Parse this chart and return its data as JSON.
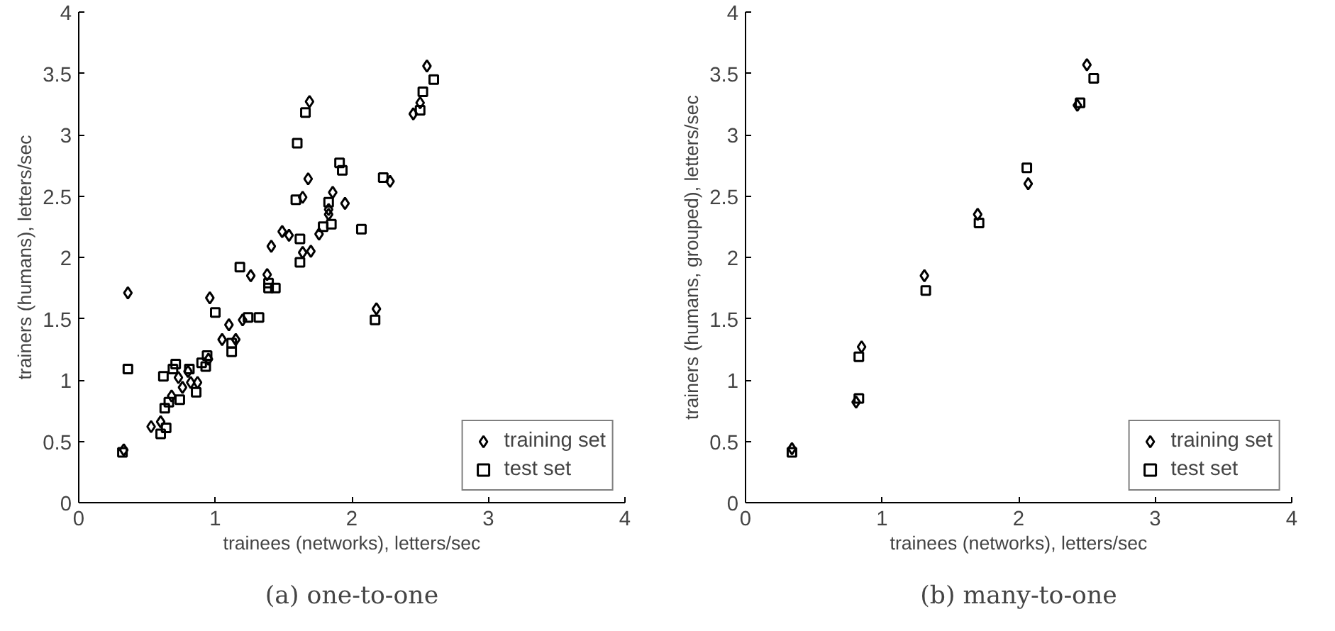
{
  "chart_data": [
    {
      "type": "scatter",
      "xlabel": "trainees (networks), letters/sec",
      "ylabel": "trainers (humans), letters/sec",
      "annotations": [
        "(a) one-to-one"
      ],
      "xlim": [
        0,
        4
      ],
      "ylim": [
        0,
        4
      ],
      "xticks": [
        0,
        1,
        2,
        3,
        4
      ],
      "yticks": [
        0,
        0.5,
        1,
        1.5,
        2,
        2.5,
        3,
        3.5,
        4
      ],
      "grid": false,
      "legend": "bottom right",
      "series": [
        {
          "name": "training set",
          "color": "#000000",
          "marker": "diamond",
          "x": [
            0.36,
            0.33,
            0.53,
            0.6,
            0.68,
            0.73,
            0.76,
            0.8,
            0.82,
            0.87,
            0.96,
            0.95,
            1.1,
            1.05,
            1.15,
            1.2,
            1.26,
            1.38,
            1.41,
            1.49,
            2.55,
            1.69,
            1.68,
            1.64,
            1.86,
            1.95,
            1.83,
            1.83,
            1.76,
            1.54,
            1.7,
            1.64,
            2.28,
            2.45,
            2.5,
            2.18
          ],
          "values": [
            1.71,
            0.43,
            0.62,
            0.66,
            0.87,
            1.02,
            0.94,
            1.07,
            0.98,
            0.98,
            1.67,
            1.17,
            1.45,
            1.33,
            1.33,
            1.49,
            1.85,
            1.86,
            2.09,
            2.21,
            3.56,
            3.27,
            2.64,
            2.49,
            2.53,
            2.44,
            2.39,
            2.35,
            2.19,
            2.18,
            2.05,
            2.04,
            2.62,
            3.17,
            3.26,
            1.58
          ]
        },
        {
          "name": "test set",
          "color": "#000000",
          "marker": "square",
          "x": [
            0.36,
            0.32,
            0.62,
            0.6,
            0.64,
            0.63,
            0.66,
            0.71,
            0.69,
            0.74,
            0.81,
            0.86,
            0.9,
            0.94,
            0.93,
            1.0,
            1.12,
            1.12,
            1.18,
            1.24,
            1.32,
            1.39,
            1.44,
            1.39,
            1.66,
            1.6,
            2.6,
            2.52,
            2.5,
            1.91,
            1.93,
            2.23,
            1.59,
            1.83,
            1.79,
            1.85,
            1.62,
            1.62,
            2.07,
            2.17
          ],
          "values": [
            1.09,
            0.41,
            1.03,
            0.56,
            0.61,
            0.77,
            0.82,
            1.13,
            1.09,
            0.84,
            1.09,
            0.9,
            1.14,
            1.2,
            1.11,
            1.55,
            1.3,
            1.23,
            1.92,
            1.51,
            1.51,
            1.79,
            1.75,
            1.75,
            3.18,
            2.93,
            3.45,
            3.35,
            3.2,
            2.77,
            2.71,
            2.65,
            2.47,
            2.45,
            2.25,
            2.27,
            2.15,
            1.96,
            2.23,
            1.49
          ]
        }
      ]
    },
    {
      "type": "scatter",
      "xlabel": "trainees (networks), letters/sec",
      "ylabel": "trainers (humans, grouped), letters/sec",
      "annotations": [
        "(b) many-to-one"
      ],
      "xlim": [
        0,
        4
      ],
      "ylim": [
        0,
        4
      ],
      "xticks": [
        0,
        1,
        2,
        3,
        4
      ],
      "yticks": [
        0,
        0.5,
        1,
        1.5,
        2,
        2.5,
        3,
        3.5,
        4
      ],
      "grid": false,
      "legend": "bottom right",
      "series": [
        {
          "name": "training set",
          "color": "#000000",
          "marker": "diamond",
          "x": [
            0.34,
            0.81,
            0.85,
            1.31,
            1.7,
            2.07,
            2.43,
            2.5
          ],
          "values": [
            0.44,
            0.82,
            1.27,
            1.85,
            2.35,
            2.6,
            3.24,
            3.57
          ]
        },
        {
          "name": "test set",
          "color": "#000000",
          "marker": "square",
          "x": [
            0.34,
            0.83,
            0.83,
            1.32,
            1.71,
            2.06,
            2.45,
            2.55
          ],
          "values": [
            0.41,
            0.85,
            1.19,
            1.73,
            2.28,
            2.73,
            3.26,
            3.46
          ]
        }
      ]
    }
  ]
}
